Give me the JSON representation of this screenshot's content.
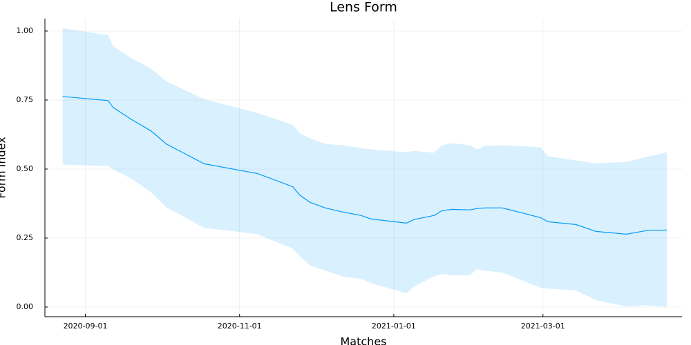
{
  "chart_data": {
    "type": "line",
    "title": "Lens Form",
    "xlabel": "Matches",
    "ylabel": "Form Index",
    "x": [
      "2020-08-23",
      "2020-09-10",
      "2020-09-12",
      "2020-09-19",
      "2020-09-27",
      "2020-10-03",
      "2020-10-18",
      "2020-11-08",
      "2020-11-22",
      "2020-11-25",
      "2020-11-29",
      "2020-12-05",
      "2020-12-12",
      "2020-12-19",
      "2020-12-23",
      "2021-01-06",
      "2021-01-09",
      "2021-01-17",
      "2021-01-20",
      "2021-01-24",
      "2021-01-31",
      "2021-02-03",
      "2021-02-06",
      "2021-02-13",
      "2021-02-28",
      "2021-03-03",
      "2021-03-14",
      "2021-03-22",
      "2021-04-03",
      "2021-04-11",
      "2021-04-19"
    ],
    "series": [
      {
        "color": "#009af9",
        "values": [
          0.763,
          0.748,
          0.723,
          0.681,
          0.638,
          0.591,
          0.519,
          0.484,
          0.436,
          0.404,
          0.379,
          0.359,
          0.344,
          0.332,
          0.319,
          0.304,
          0.317,
          0.332,
          0.349,
          0.354,
          0.352,
          0.357,
          0.359,
          0.359,
          0.324,
          0.309,
          0.299,
          0.274,
          0.264,
          0.277,
          0.279
        ],
        "upper": [
          1.01,
          0.985,
          0.945,
          0.903,
          0.863,
          0.818,
          0.753,
          0.703,
          0.661,
          0.628,
          0.611,
          0.591,
          0.586,
          0.576,
          0.571,
          0.561,
          0.566,
          0.559,
          0.586,
          0.594,
          0.586,
          0.571,
          0.584,
          0.586,
          0.579,
          0.546,
          0.531,
          0.521,
          0.526,
          0.544,
          0.561
        ],
        "lower": [
          0.516,
          0.511,
          0.499,
          0.466,
          0.416,
          0.362,
          0.287,
          0.264,
          0.212,
          0.182,
          0.15,
          0.132,
          0.11,
          0.102,
          0.087,
          0.05,
          0.075,
          0.112,
          0.12,
          0.115,
          0.115,
          0.137,
          0.132,
          0.125,
          0.07,
          0.067,
          0.06,
          0.025,
          0.002,
          0.007,
          0.0
        ]
      }
    ],
    "xlim": [
      "2020-08-16",
      "2021-04-25"
    ],
    "xticks": [
      "2020-09-01",
      "2020-11-01",
      "2021-01-01",
      "2021-03-01"
    ],
    "ylim": [
      -0.035,
      1.045
    ],
    "yticks": [
      {
        "value": 0,
        "label": "0.00"
      },
      {
        "value": 0.25,
        "label": "0.25"
      },
      {
        "value": 0.5,
        "label": "0.50"
      },
      {
        "value": 0.75,
        "label": "0.75"
      },
      {
        "value": 1,
        "label": "1.00"
      }
    ],
    "grid": true
  }
}
